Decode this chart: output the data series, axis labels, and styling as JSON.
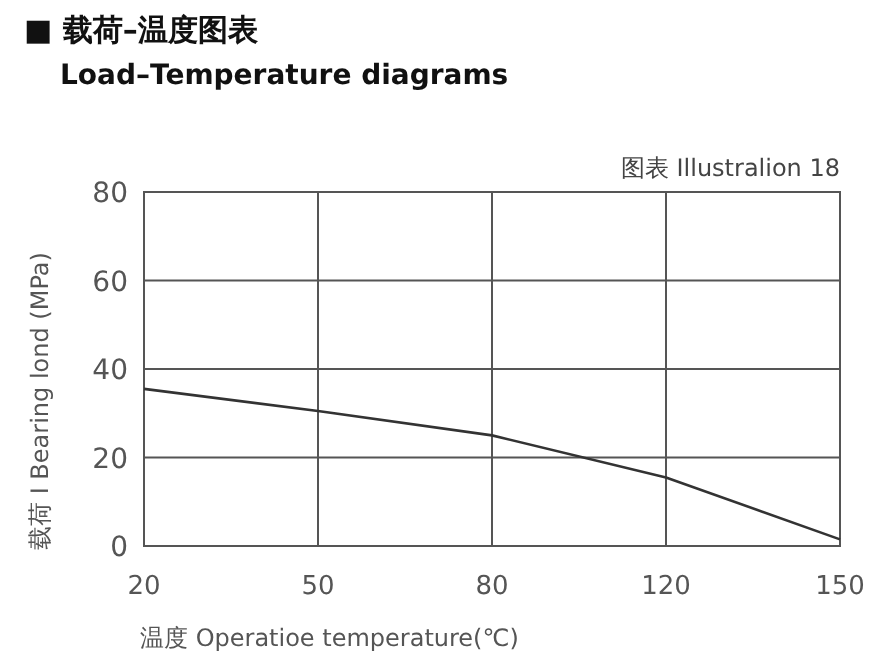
{
  "chart_data": {
    "type": "line",
    "title": "■ 载荷–温度图表",
    "subtitle": "Load–Temperature  diagrams",
    "annotations": [
      "图表 Illustralion 18"
    ],
    "xlabel": "温度 Operatioe temperature(℃)",
    "ylabel": "载荷 I Bearing lond (MPa)",
    "categories": [
      "20",
      "50",
      "80",
      "120",
      "150"
    ],
    "series": [
      {
        "color": "#333333",
        "values": [
          35.5,
          30.5,
          25,
          15.5,
          1.5
        ]
      }
    ],
    "ylim": [
      0,
      80
    ],
    "yticks": [
      0,
      20,
      40,
      60,
      80
    ],
    "grid": true,
    "marker": "none",
    "line_style": "solid"
  }
}
